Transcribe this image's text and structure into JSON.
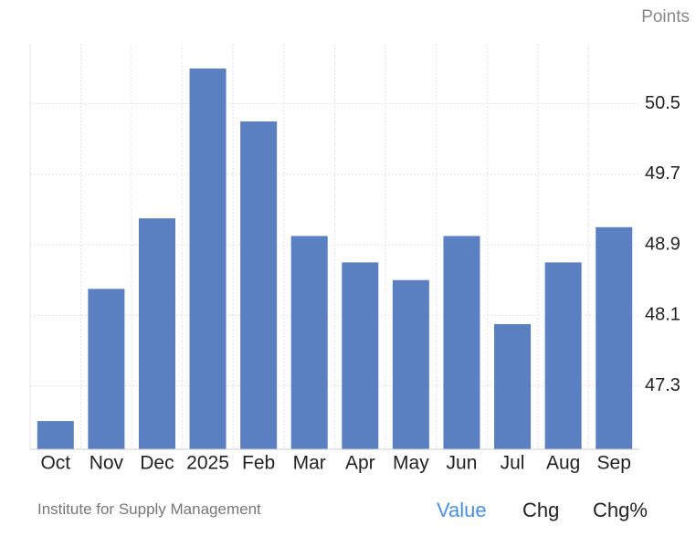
{
  "chart_data": {
    "type": "bar",
    "unit_label": "Points",
    "categories": [
      "Oct",
      "Nov",
      "Dec",
      "2025",
      "Feb",
      "Mar",
      "Apr",
      "May",
      "Jun",
      "Jul",
      "Aug",
      "Sep"
    ],
    "values": [
      46.9,
      48.4,
      49.2,
      50.9,
      50.3,
      49.0,
      48.7,
      48.5,
      49.0,
      48.0,
      48.7,
      49.1
    ],
    "color": "#5a80c2",
    "ylim": [
      46.58,
      51.18
    ],
    "yticks": [
      47.3,
      48.1,
      48.9,
      49.7,
      50.5
    ],
    "grid": true,
    "source": "Institute for Supply Management",
    "tabs": [
      "Value",
      "Chg",
      "Chg%"
    ]
  }
}
